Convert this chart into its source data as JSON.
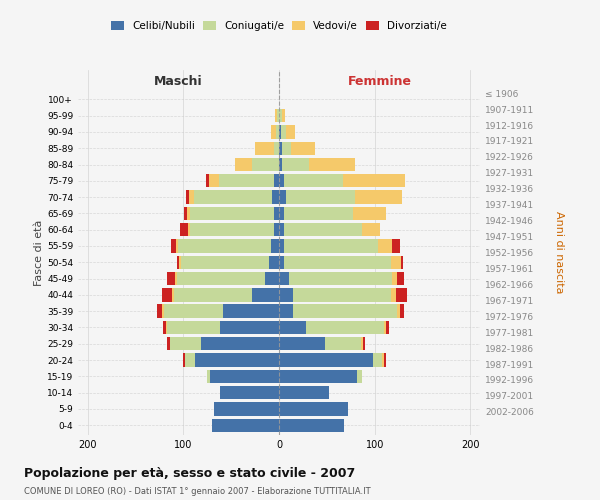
{
  "age_groups": [
    "0-4",
    "5-9",
    "10-14",
    "15-19",
    "20-24",
    "25-29",
    "30-34",
    "35-39",
    "40-44",
    "45-49",
    "50-54",
    "55-59",
    "60-64",
    "65-69",
    "70-74",
    "75-79",
    "80-84",
    "85-89",
    "90-94",
    "95-99",
    "100+"
  ],
  "birth_years": [
    "2002-2006",
    "1997-2001",
    "1992-1996",
    "1987-1991",
    "1982-1986",
    "1977-1981",
    "1972-1976",
    "1967-1971",
    "1962-1966",
    "1957-1961",
    "1952-1956",
    "1947-1951",
    "1942-1946",
    "1937-1941",
    "1932-1936",
    "1927-1931",
    "1922-1926",
    "1917-1921",
    "1912-1916",
    "1907-1911",
    "≤ 1906"
  ],
  "males": {
    "celibi": [
      70,
      68,
      62,
      72,
      88,
      82,
      62,
      58,
      28,
      15,
      10,
      8,
      5,
      5,
      7,
      5,
      0,
      0,
      0,
      0,
      0
    ],
    "coniugati": [
      0,
      0,
      0,
      3,
      10,
      32,
      55,
      62,
      82,
      92,
      92,
      98,
      88,
      88,
      82,
      58,
      28,
      5,
      3,
      2,
      0
    ],
    "vedovi": [
      0,
      0,
      0,
      0,
      0,
      0,
      1,
      2,
      2,
      2,
      2,
      2,
      2,
      3,
      5,
      10,
      18,
      20,
      5,
      2,
      0
    ],
    "divorziati": [
      0,
      0,
      0,
      0,
      2,
      3,
      3,
      5,
      10,
      8,
      3,
      5,
      8,
      3,
      3,
      3,
      0,
      0,
      0,
      0,
      0
    ]
  },
  "females": {
    "nubili": [
      68,
      72,
      52,
      82,
      98,
      48,
      28,
      15,
      15,
      10,
      5,
      5,
      5,
      5,
      7,
      5,
      3,
      3,
      2,
      0,
      0
    ],
    "coniugate": [
      0,
      0,
      0,
      5,
      10,
      38,
      82,
      108,
      102,
      108,
      112,
      98,
      82,
      72,
      72,
      62,
      28,
      10,
      5,
      3,
      0
    ],
    "vedove": [
      0,
      0,
      0,
      0,
      2,
      2,
      2,
      3,
      5,
      5,
      10,
      15,
      18,
      35,
      50,
      65,
      48,
      25,
      10,
      3,
      0
    ],
    "divorziate": [
      0,
      0,
      0,
      0,
      2,
      2,
      3,
      5,
      12,
      8,
      3,
      8,
      0,
      0,
      0,
      0,
      0,
      0,
      0,
      0,
      0
    ]
  },
  "colors": {
    "celibi": "#4472a8",
    "coniugati": "#c5d99a",
    "vedovi": "#f5c96a",
    "divorziati": "#cc2222"
  },
  "xlim": 210,
  "xticks": [
    -200,
    -100,
    0,
    100,
    200
  ],
  "title": "Popolazione per età, sesso e stato civile - 2007",
  "subtitle": "COMUNE DI LOREO (RO) - Dati ISTAT 1° gennaio 2007 - Elaborazione TUTTITALIA.IT",
  "xlabel_left": "Maschi",
  "xlabel_right": "Femmine",
  "ylabel_left": "Fasce di età",
  "ylabel_right": "Anni di nascita",
  "background_color": "#f5f5f5",
  "grid_color": "#cccccc"
}
